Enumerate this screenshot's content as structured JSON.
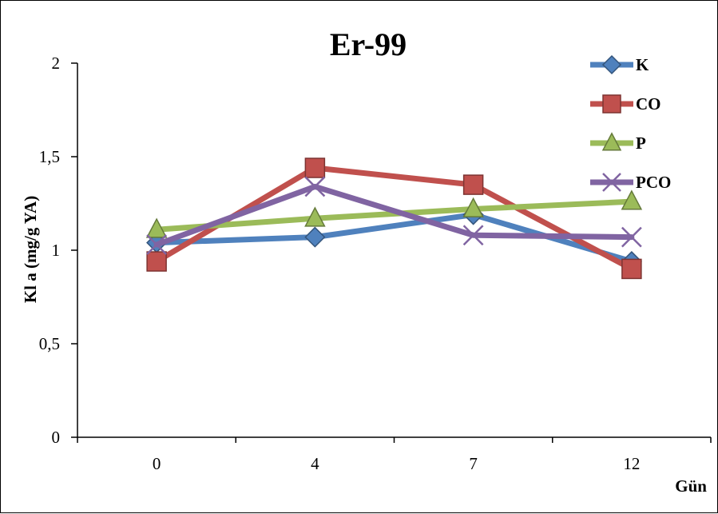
{
  "chart_data": {
    "type": "line",
    "title": "Er-99",
    "xlabel": "Gün",
    "ylabel": "Kl a (mg/g YA)",
    "categories": [
      "0",
      "4",
      "7",
      "12"
    ],
    "ylim": [
      0,
      2
    ],
    "yticks": [
      "0",
      "0,5",
      "1",
      "1,5",
      "2"
    ],
    "grid": false,
    "legend_position": "top-right",
    "series": [
      {
        "name": "K",
        "values": [
          1.04,
          1.07,
          1.19,
          0.94
        ],
        "color": "#4F81BD",
        "marker": "diamond"
      },
      {
        "name": "CO",
        "values": [
          0.94,
          1.44,
          1.35,
          0.9
        ],
        "color": "#C0504D",
        "marker": "square"
      },
      {
        "name": "P",
        "values": [
          1.11,
          1.17,
          1.22,
          1.26
        ],
        "color": "#9BBB59",
        "marker": "triangle"
      },
      {
        "name": "PCO",
        "values": [
          1.03,
          1.34,
          1.08,
          1.07
        ],
        "color": "#8064A2",
        "marker": "x"
      }
    ]
  }
}
